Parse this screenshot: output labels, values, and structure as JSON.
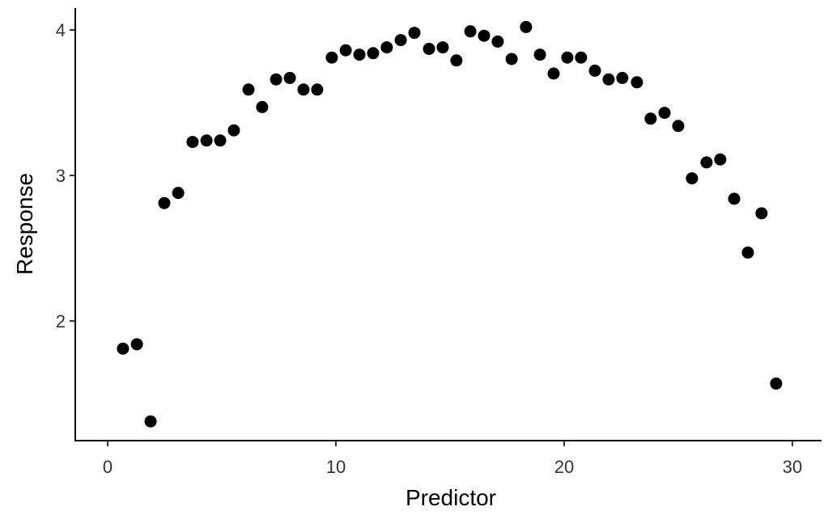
{
  "chart_data": {
    "type": "scatter",
    "x_label": "Predictor",
    "y_label": "Response",
    "x": [
      0.67,
      1.28,
      1.88,
      2.48,
      3.09,
      3.72,
      4.33,
      4.93,
      5.53,
      6.17,
      6.77,
      7.38,
      7.98,
      8.58,
      9.18,
      9.82,
      10.43,
      11.03,
      11.63,
      12.23,
      12.84,
      13.44,
      14.08,
      14.68,
      15.28,
      15.89,
      16.49,
      17.09,
      17.7,
      18.33,
      18.94,
      19.54,
      20.14,
      20.74,
      21.35,
      21.95,
      22.55,
      23.19,
      23.79,
      24.4,
      25.0,
      25.6,
      26.24,
      26.84,
      27.45,
      28.05,
      28.65,
      29.29
    ],
    "values": [
      1.81,
      1.84,
      1.31,
      2.81,
      2.88,
      3.23,
      3.24,
      3.24,
      3.31,
      3.59,
      3.47,
      3.66,
      3.67,
      3.59,
      3.59,
      3.81,
      3.86,
      3.83,
      3.84,
      3.88,
      3.93,
      3.98,
      3.87,
      3.88,
      3.79,
      3.99,
      3.96,
      3.92,
      3.8,
      4.02,
      3.83,
      3.7,
      3.81,
      3.81,
      3.72,
      3.66,
      3.67,
      3.64,
      3.39,
      3.43,
      3.34,
      2.98,
      3.09,
      3.11,
      2.84,
      2.47,
      2.74,
      1.57
    ],
    "color": "#000000",
    "xlim": [
      -1.42,
      31.28
    ],
    "xticks": [
      0,
      10,
      20,
      30
    ],
    "ylim": [
      1.178,
      4.15
    ],
    "yticks": [
      2,
      3,
      4
    ]
  }
}
